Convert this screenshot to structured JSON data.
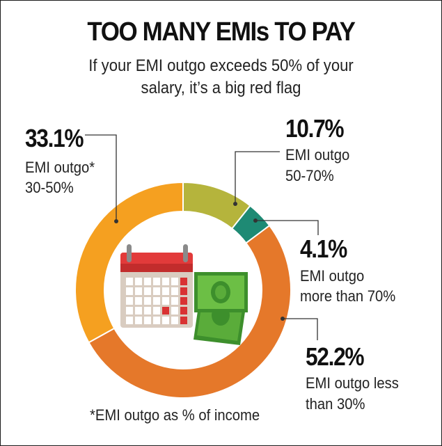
{
  "title": "TOO MANY EMIs TO PAY",
  "subtitle_line1": "If your EMI outgo exceeds 50% of your",
  "subtitle_line2": "salary, it’s a big red flag",
  "footnote": "*EMI outgo as % of income",
  "chart_data": {
    "type": "pie",
    "variant": "donut",
    "title": "TOO MANY EMIs TO PAY",
    "slices": [
      {
        "pct": "10.7%",
        "value": 10.7,
        "label_line1": "EMI outgo",
        "label_line2": "50-70%",
        "color": "#b5b43c"
      },
      {
        "pct": "4.1%",
        "value": 4.1,
        "label_line1": "EMI outgo",
        "label_line2": "more than 70%",
        "color": "#1e8a74"
      },
      {
        "pct": "52.2%",
        "value": 52.2,
        "label_line1": "EMI outgo less",
        "label_line2": "than 30%",
        "color": "#e5782a"
      },
      {
        "pct": "33.1%",
        "value": 33.1,
        "label_line1": "EMI outgo*",
        "label_line2": "30-50%",
        "color": "#f5a020"
      }
    ]
  },
  "icons": [
    "calendar-icon",
    "cash-icon"
  ]
}
